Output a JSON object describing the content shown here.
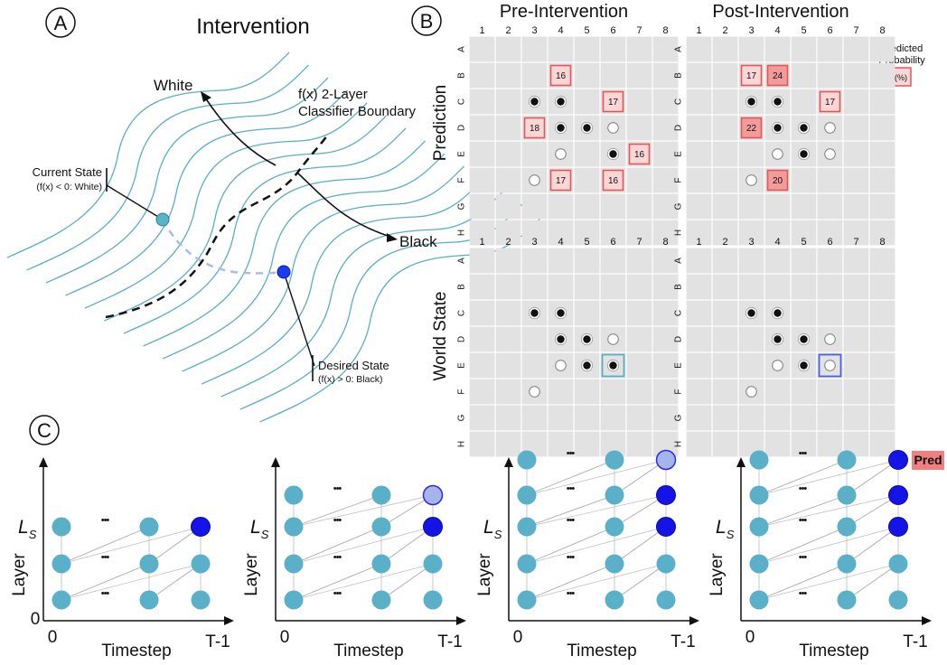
{
  "panel_a": {
    "circle_label": "A",
    "title": "Intervention",
    "white_label": "White",
    "black_label": "Black",
    "boundary_label_1": "f(x) 2-Layer",
    "boundary_label_2": "Classifier Boundary",
    "current_state": "Current State",
    "current_state_sub": "(f(x) < 0: White)",
    "desired_state": "Desired State",
    "desired_state_sub": "(f(x) > 0: Black)",
    "colors": {
      "contour": "#5aaec6",
      "current": "#5ab4c8",
      "desired": "#1a3cf0",
      "path": "#a9bde6"
    }
  },
  "panel_b": {
    "circle_label": "B",
    "pre_title": "Pre-Intervention",
    "post_title": "Post-Intervention",
    "row_label_prediction": "Prediction",
    "row_label_world": "World State",
    "legend_title_1": "Predicted",
    "legend_title_2": "Probability",
    "legend_box": "(%)",
    "col_labels": [
      "1",
      "2",
      "3",
      "4",
      "5",
      "6",
      "7",
      "8"
    ],
    "row_labels": [
      "A",
      "B",
      "C",
      "D",
      "E",
      "F",
      "G",
      "H"
    ],
    "boards": {
      "pre_prediction": {
        "black": [
          [
            2,
            2
          ],
          [
            2,
            3
          ],
          [
            3,
            3
          ],
          [
            3,
            4
          ],
          [
            4,
            5
          ]
        ],
        "white": [
          [
            3,
            5
          ],
          [
            4,
            3
          ],
          [
            5,
            2
          ]
        ],
        "predictions": [
          {
            "row": 1,
            "col": 3,
            "value": "16",
            "strong": false
          },
          {
            "row": 2,
            "col": 5,
            "value": "17",
            "strong": false
          },
          {
            "row": 3,
            "col": 2,
            "value": "18",
            "strong": false
          },
          {
            "row": 4,
            "col": 6,
            "value": "16",
            "strong": false
          },
          {
            "row": 5,
            "col": 3,
            "value": "17",
            "strong": false
          },
          {
            "row": 5,
            "col": 5,
            "value": "16",
            "strong": false
          }
        ]
      },
      "post_prediction": {
        "black": [
          [
            2,
            2
          ],
          [
            2,
            3
          ],
          [
            3,
            3
          ],
          [
            3,
            4
          ],
          [
            4,
            4
          ]
        ],
        "white": [
          [
            3,
            5
          ],
          [
            4,
            3
          ],
          [
            4,
            5
          ],
          [
            5,
            2
          ]
        ],
        "predictions": [
          {
            "row": 1,
            "col": 2,
            "value": "17",
            "strong": false
          },
          {
            "row": 1,
            "col": 3,
            "value": "24",
            "strong": true
          },
          {
            "row": 2,
            "col": 5,
            "value": "17",
            "strong": false
          },
          {
            "row": 3,
            "col": 2,
            "value": "22",
            "strong": true
          },
          {
            "row": 5,
            "col": 3,
            "value": "20",
            "strong": true
          }
        ]
      },
      "pre_world": {
        "black": [
          [
            2,
            2
          ],
          [
            2,
            3
          ],
          [
            3,
            3
          ],
          [
            3,
            4
          ],
          [
            4,
            4
          ],
          [
            4,
            5
          ]
        ],
        "white": [
          [
            3,
            5
          ],
          [
            4,
            3
          ],
          [
            5,
            2
          ]
        ],
        "highlight": {
          "row": 4,
          "col": 5,
          "color": "#5aaec6"
        }
      },
      "post_world": {
        "black": [
          [
            2,
            2
          ],
          [
            2,
            3
          ],
          [
            3,
            3
          ],
          [
            3,
            4
          ],
          [
            4,
            4
          ]
        ],
        "white": [
          [
            3,
            5
          ],
          [
            4,
            3
          ],
          [
            4,
            5
          ],
          [
            5,
            2
          ]
        ],
        "highlight": {
          "row": 4,
          "col": 5,
          "color": "#4a5fe8"
        }
      }
    },
    "colors": {
      "cell": "#e2e2e2",
      "pred_light": "#fbd6d6",
      "pred_strong": "#f39a9a",
      "pred_border": "#e0575a"
    }
  },
  "panel_c": {
    "circle_label": "C",
    "layer_label": "Layer",
    "timestep_label": "Timestep",
    "origin_label": "0",
    "x_start_label": "0",
    "x_end_label": "T-1",
    "ls_label": "L",
    "ls_sub": "S",
    "ellipsis": "•••",
    "pred_badge": "Pred",
    "colors": {
      "node": "#5ab0c8",
      "active": "#1414e6",
      "ghost": "#a6b4ec",
      "badge": "#f08080"
    },
    "diagrams": [
      {
        "rows": 3,
        "active_rows": [
          2
        ],
        "ghost_rows": [],
        "pred": false
      },
      {
        "rows": 4,
        "active_rows": [
          2
        ],
        "ghost_rows": [
          3
        ],
        "pred": false
      },
      {
        "rows": 5,
        "active_rows": [
          2,
          3
        ],
        "ghost_rows": [
          4
        ],
        "pred": false
      },
      {
        "rows": 5,
        "active_rows": [
          2,
          3,
          4
        ],
        "ghost_rows": [],
        "pred": true
      }
    ]
  }
}
